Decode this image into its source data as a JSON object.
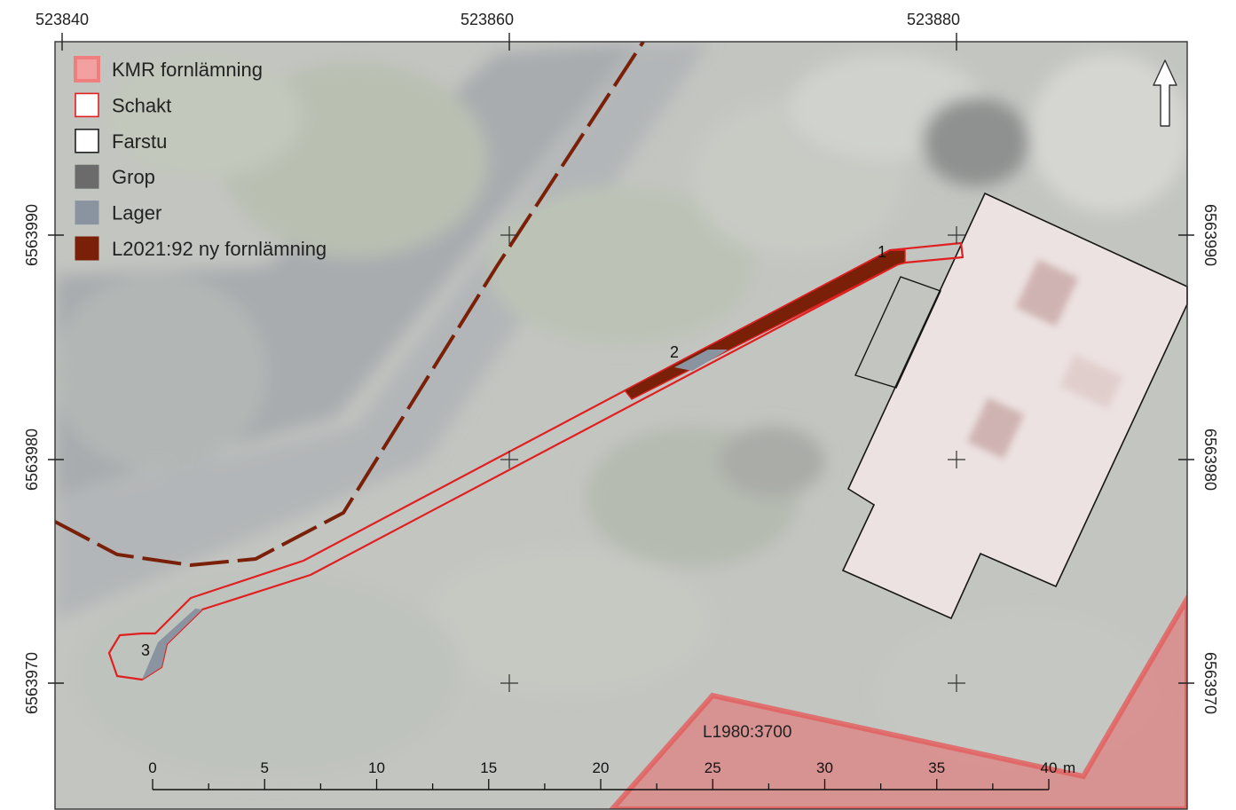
{
  "map": {
    "x_ticks": [
      "523840",
      "523860",
      "523880"
    ],
    "y_ticks": [
      "6563990",
      "6563980",
      "6563970"
    ],
    "north_arrow": "north-arrow-icon",
    "legend": [
      {
        "label": "KMR fornlämning",
        "swatch": "fill",
        "color": "#f2a0a0",
        "stroke": "#ef7f7f"
      },
      {
        "label": "Schakt",
        "swatch": "outline",
        "color": "#ffffff",
        "stroke": "#e02020"
      },
      {
        "label": "Farstu",
        "swatch": "outline",
        "color": "#ffffff",
        "stroke": "#222222"
      },
      {
        "label": "Grop",
        "swatch": "fill",
        "color": "#6b6b6b",
        "stroke": "#6b6b6b"
      },
      {
        "label": "Lager",
        "swatch": "fill",
        "color": "#8a93a0",
        "stroke": "#8a93a0"
      },
      {
        "label": "L2021:92 ny fornlämning",
        "swatch": "fill",
        "color": "#7a2008",
        "stroke": "#7a2008"
      }
    ],
    "trench_labels": [
      "1",
      "2",
      "3"
    ],
    "zone_label": "L1980:3700",
    "scale_bar": {
      "ticks": [
        "0",
        "5",
        "10",
        "15",
        "20",
        "25",
        "30",
        "35",
        "40"
      ],
      "unit": "m"
    },
    "colors": {
      "schakt": "#e02020",
      "kmr": "#e86a6a",
      "new_site": "#7a2008",
      "lager": "#8a93a0",
      "farstu": "#222222"
    }
  }
}
